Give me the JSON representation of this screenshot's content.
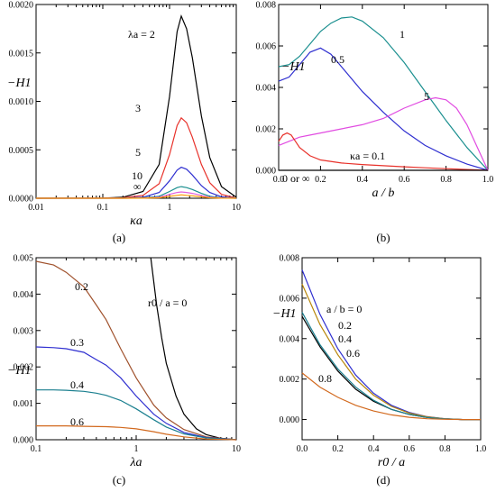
{
  "chart_data": [
    {
      "panel": "(a)",
      "type": "line",
      "xscale": "log",
      "xlim": [
        0.01,
        10
      ],
      "ylim": [
        0,
        0.002
      ],
      "xlabel": "κa",
      "ylabel": "−H1",
      "xticks": [
        "0.01",
        "0.1",
        "1",
        "10"
      ],
      "yticks": [
        "0.0000",
        "0.0005",
        "0.0010",
        "0.0015",
        "0.0020"
      ],
      "series": [
        {
          "name": "λa = 2",
          "color": "#000000",
          "x": [
            0.01,
            0.1,
            0.2,
            0.4,
            0.7,
            1.0,
            1.3,
            1.5,
            1.8,
            2.2,
            3,
            4,
            6,
            10
          ],
          "y": [
            0,
            2e-06,
            1e-05,
            7e-05,
            0.00035,
            0.00105,
            0.00172,
            0.00188,
            0.00175,
            0.00145,
            0.00085,
            0.00042,
            0.00012,
            1e-05
          ]
        },
        {
          "name": "3",
          "color": "#e8312a",
          "x": [
            0.01,
            0.1,
            0.2,
            0.4,
            0.7,
            1.0,
            1.3,
            1.5,
            1.8,
            2.2,
            3,
            4,
            6,
            10
          ],
          "y": [
            0,
            1e-06,
            5e-06,
            3e-05,
            0.00015,
            0.00045,
            0.00075,
            0.00083,
            0.00078,
            0.00063,
            0.00035,
            0.00016,
            4e-05,
            0
          ]
        },
        {
          "name": "5",
          "color": "#2f2fd0",
          "x": [
            0.01,
            0.1,
            0.2,
            0.4,
            0.7,
            1.0,
            1.3,
            1.5,
            1.8,
            2.2,
            3,
            4,
            6,
            10
          ],
          "y": [
            0,
            0,
            2e-06,
            1e-05,
            6e-05,
            0.00018,
            0.00029,
            0.00032,
            0.0003,
            0.00024,
            0.00013,
            6e-05,
            1.5e-05,
            0
          ]
        },
        {
          "name": "10",
          "color": "#1a8f8f",
          "x": [
            0.01,
            0.1,
            0.2,
            0.4,
            0.7,
            1.0,
            1.3,
            1.5,
            1.8,
            2.2,
            3,
            4,
            6,
            10
          ],
          "y": [
            0,
            0,
            0,
            4e-06,
            2e-05,
            7e-05,
            0.00011,
            0.00012,
            0.00011,
            9e-05,
            5e-05,
            2e-05,
            5e-06,
            0
          ]
        },
        {
          "name": "∞",
          "color": "#e060e0",
          "x": [
            0.01,
            0.1,
            0.2,
            0.4,
            0.7,
            1.0,
            1.3,
            1.5,
            1.8,
            2.2,
            3,
            4,
            6,
            10
          ],
          "y": [
            0,
            0,
            0,
            2e-06,
            1e-05,
            4e-05,
            6e-05,
            6.5e-05,
            6e-05,
            5e-05,
            3e-05,
            1e-05,
            3e-06,
            0
          ]
        },
        {
          "name": "",
          "color": "#ff9900",
          "x": [
            0.01,
            0.1,
            0.2,
            0.4,
            0.7,
            1.0,
            1.3,
            1.5,
            1.8,
            2.2,
            3,
            4,
            6,
            10
          ],
          "y": [
            0,
            0,
            0,
            1e-06,
            5e-06,
            2e-05,
            3e-05,
            3.5e-05,
            3e-05,
            2.5e-05,
            1.5e-05,
            5e-06,
            1e-06,
            0
          ]
        }
      ]
    },
    {
      "panel": "(b)",
      "type": "line",
      "xlim": [
        0,
        1
      ],
      "ylim": [
        0,
        0.008
      ],
      "xlabel": "a / b",
      "ylabel": "−H1",
      "xticks": [
        "0.0",
        "0.2",
        "0.4",
        "0.6",
        "0.8",
        "1.0"
      ],
      "yticks": [
        "0.000",
        "0.002",
        "0.004",
        "0.006",
        "0.008"
      ],
      "curve_labels": [
        "1",
        "0.5",
        "5",
        "κa = 0.1",
        "0 or ∞"
      ],
      "series": [
        {
          "name": "1",
          "color": "#1a8f8f",
          "x": [
            0,
            0.05,
            0.1,
            0.15,
            0.2,
            0.25,
            0.3,
            0.35,
            0.4,
            0.5,
            0.6,
            0.7,
            0.8,
            0.9,
            1.0
          ],
          "y": [
            0.005,
            0.0051,
            0.0055,
            0.0061,
            0.0067,
            0.0071,
            0.00735,
            0.0074,
            0.0072,
            0.0064,
            0.0052,
            0.0038,
            0.0024,
            0.0011,
            0
          ]
        },
        {
          "name": "0.5",
          "color": "#2f2fd0",
          "x": [
            0,
            0.05,
            0.1,
            0.15,
            0.2,
            0.25,
            0.3,
            0.4,
            0.5,
            0.6,
            0.7,
            0.8,
            0.9,
            1.0
          ],
          "y": [
            0.0043,
            0.0045,
            0.0051,
            0.0057,
            0.0059,
            0.0056,
            0.005,
            0.0038,
            0.0028,
            0.0019,
            0.0012,
            0.0007,
            0.0003,
            0
          ]
        },
        {
          "name": "5",
          "color": "#e14be1",
          "x": [
            0,
            0.05,
            0.1,
            0.15,
            0.2,
            0.3,
            0.4,
            0.5,
            0.6,
            0.7,
            0.75,
            0.8,
            0.85,
            0.9,
            0.95,
            1.0
          ],
          "y": [
            0.0012,
            0.0014,
            0.0016,
            0.0017,
            0.0018,
            0.002,
            0.0022,
            0.0025,
            0.003,
            0.0034,
            0.0035,
            0.0034,
            0.003,
            0.0022,
            0.0011,
            0
          ]
        },
        {
          "name": "κa = 0.1",
          "color": "#e8312a",
          "x": [
            0,
            0.02,
            0.04,
            0.06,
            0.08,
            0.1,
            0.15,
            0.2,
            0.3,
            0.4,
            0.5,
            0.6,
            0.7,
            0.8,
            0.9,
            1.0
          ],
          "y": [
            0.0014,
            0.0017,
            0.0018,
            0.0017,
            0.0014,
            0.0011,
            0.0007,
            0.0005,
            0.00035,
            0.00028,
            0.00022,
            0.00017,
            0.00012,
            8e-05,
            4e-05,
            0
          ]
        },
        {
          "name": "0 or ∞",
          "color": "#000000",
          "x": [
            0,
            1
          ],
          "y": [
            0,
            0
          ]
        }
      ]
    },
    {
      "panel": "(c)",
      "type": "line",
      "xscale": "log",
      "xlim": [
        0.1,
        10
      ],
      "ylim": [
        0,
        0.005
      ],
      "xlabel": "λa",
      "ylabel": "−H1",
      "xticks": [
        "0.1",
        "1",
        "10"
      ],
      "yticks": [
        "0.000",
        "0.001",
        "0.002",
        "0.003",
        "0.004",
        "0.005"
      ],
      "curve_labels": [
        "r0 / a = 0",
        "0.2",
        "0.3",
        "0.4",
        "0.6"
      ],
      "series": [
        {
          "name": "r0 / a = 0",
          "color": "#000000",
          "x": [
            1.4,
            1.6,
            1.8,
            2,
            2.5,
            3,
            4,
            5,
            7,
            10
          ],
          "y": [
            0.005,
            0.0037,
            0.0028,
            0.0021,
            0.0012,
            0.0007,
            0.0003,
            0.00014,
            4e-05,
            0
          ]
        },
        {
          "name": "0.2",
          "color": "#a0522d",
          "x": [
            0.1,
            0.15,
            0.2,
            0.3,
            0.4,
            0.5,
            0.7,
            1,
            1.5,
            2,
            3,
            5,
            10
          ],
          "y": [
            0.0049,
            0.0048,
            0.0046,
            0.0042,
            0.0037,
            0.0033,
            0.0025,
            0.0017,
            0.00095,
            0.0006,
            0.00028,
            8e-05,
            0
          ]
        },
        {
          "name": "0.3",
          "color": "#2f2fd0",
          "x": [
            0.1,
            0.15,
            0.2,
            0.3,
            0.4,
            0.5,
            0.7,
            1,
            1.5,
            2,
            3,
            5,
            10
          ],
          "y": [
            0.00255,
            0.00253,
            0.0025,
            0.0024,
            0.0022,
            0.00205,
            0.0017,
            0.0012,
            0.0007,
            0.00045,
            0.0002,
            6e-05,
            0
          ]
        },
        {
          "name": "0.4",
          "color": "#1a7f8f",
          "x": [
            0.1,
            0.15,
            0.2,
            0.3,
            0.4,
            0.5,
            0.7,
            1,
            1.5,
            2,
            3,
            5,
            10
          ],
          "y": [
            0.00137,
            0.00137,
            0.00136,
            0.00133,
            0.00128,
            0.00122,
            0.00108,
            0.00085,
            0.00055,
            0.00035,
            0.00016,
            5e-05,
            0
          ]
        },
        {
          "name": "0.6",
          "color": "#d2691e",
          "x": [
            0.1,
            0.2,
            0.3,
            0.5,
            0.7,
            1,
            1.5,
            2,
            3,
            5,
            10
          ],
          "y": [
            0.00038,
            0.00038,
            0.00037,
            0.00036,
            0.00034,
            0.0003,
            0.00022,
            0.00015,
            8e-05,
            2e-05,
            0
          ]
        }
      ]
    },
    {
      "panel": "(d)",
      "type": "line",
      "xlim": [
        0,
        1
      ],
      "ylim": [
        -0.001,
        0.008
      ],
      "xlabel": "r0 / a",
      "ylabel": "−H1",
      "xticks": [
        "0.0",
        "0.2",
        "0.4",
        "0.6",
        "0.8",
        "1.0"
      ],
      "yticks": [
        "0.000",
        "0.002",
        "0.004",
        "0.006",
        "0.008"
      ],
      "curve_labels": [
        "a / b = 0",
        "0.2",
        "0.4",
        "0.6",
        "0.8"
      ],
      "series": [
        {
          "name": "a / b = 0",
          "color": "#000000",
          "x": [
            0,
            0.1,
            0.2,
            0.3,
            0.4,
            0.5,
            0.6,
            0.7,
            0.8,
            0.9,
            1.0
          ],
          "y": [
            0.0051,
            0.0036,
            0.0024,
            0.0015,
            0.0009,
            0.0005,
            0.00025,
            0.0001,
            3e-05,
            0,
            0
          ]
        },
        {
          "name": "0.2",
          "color": "#2f2fd0",
          "x": [
            0,
            0.1,
            0.2,
            0.3,
            0.4,
            0.5,
            0.6,
            0.7,
            0.8,
            0.9,
            1.0
          ],
          "y": [
            0.0074,
            0.0052,
            0.0035,
            0.0022,
            0.0013,
            0.0007,
            0.00035,
            0.00014,
            4e-05,
            0,
            0
          ]
        },
        {
          "name": "0.4",
          "color": "#b8860b",
          "x": [
            0,
            0.1,
            0.2,
            0.3,
            0.4,
            0.5,
            0.6,
            0.7,
            0.8,
            0.9,
            1.0
          ],
          "y": [
            0.0067,
            0.0047,
            0.0032,
            0.002,
            0.0012,
            0.00065,
            0.00032,
            0.00013,
            4e-05,
            0,
            0
          ]
        },
        {
          "name": "0.6",
          "color": "#1a7f8f",
          "x": [
            0,
            0.1,
            0.2,
            0.3,
            0.4,
            0.5,
            0.6,
            0.7,
            0.8,
            0.9,
            1.0
          ],
          "y": [
            0.0053,
            0.0037,
            0.0025,
            0.0016,
            0.00095,
            0.0005,
            0.00025,
            0.0001,
            3e-05,
            0,
            0
          ]
        },
        {
          "name": "0.8",
          "color": "#d2691e",
          "x": [
            0,
            0.1,
            0.2,
            0.3,
            0.4,
            0.5,
            0.6,
            0.7,
            0.8,
            0.9,
            1.0
          ],
          "y": [
            0.0023,
            0.0016,
            0.0011,
            0.0007,
            0.00042,
            0.00023,
            0.00011,
            4e-05,
            1e-05,
            0,
            0
          ]
        }
      ]
    }
  ]
}
